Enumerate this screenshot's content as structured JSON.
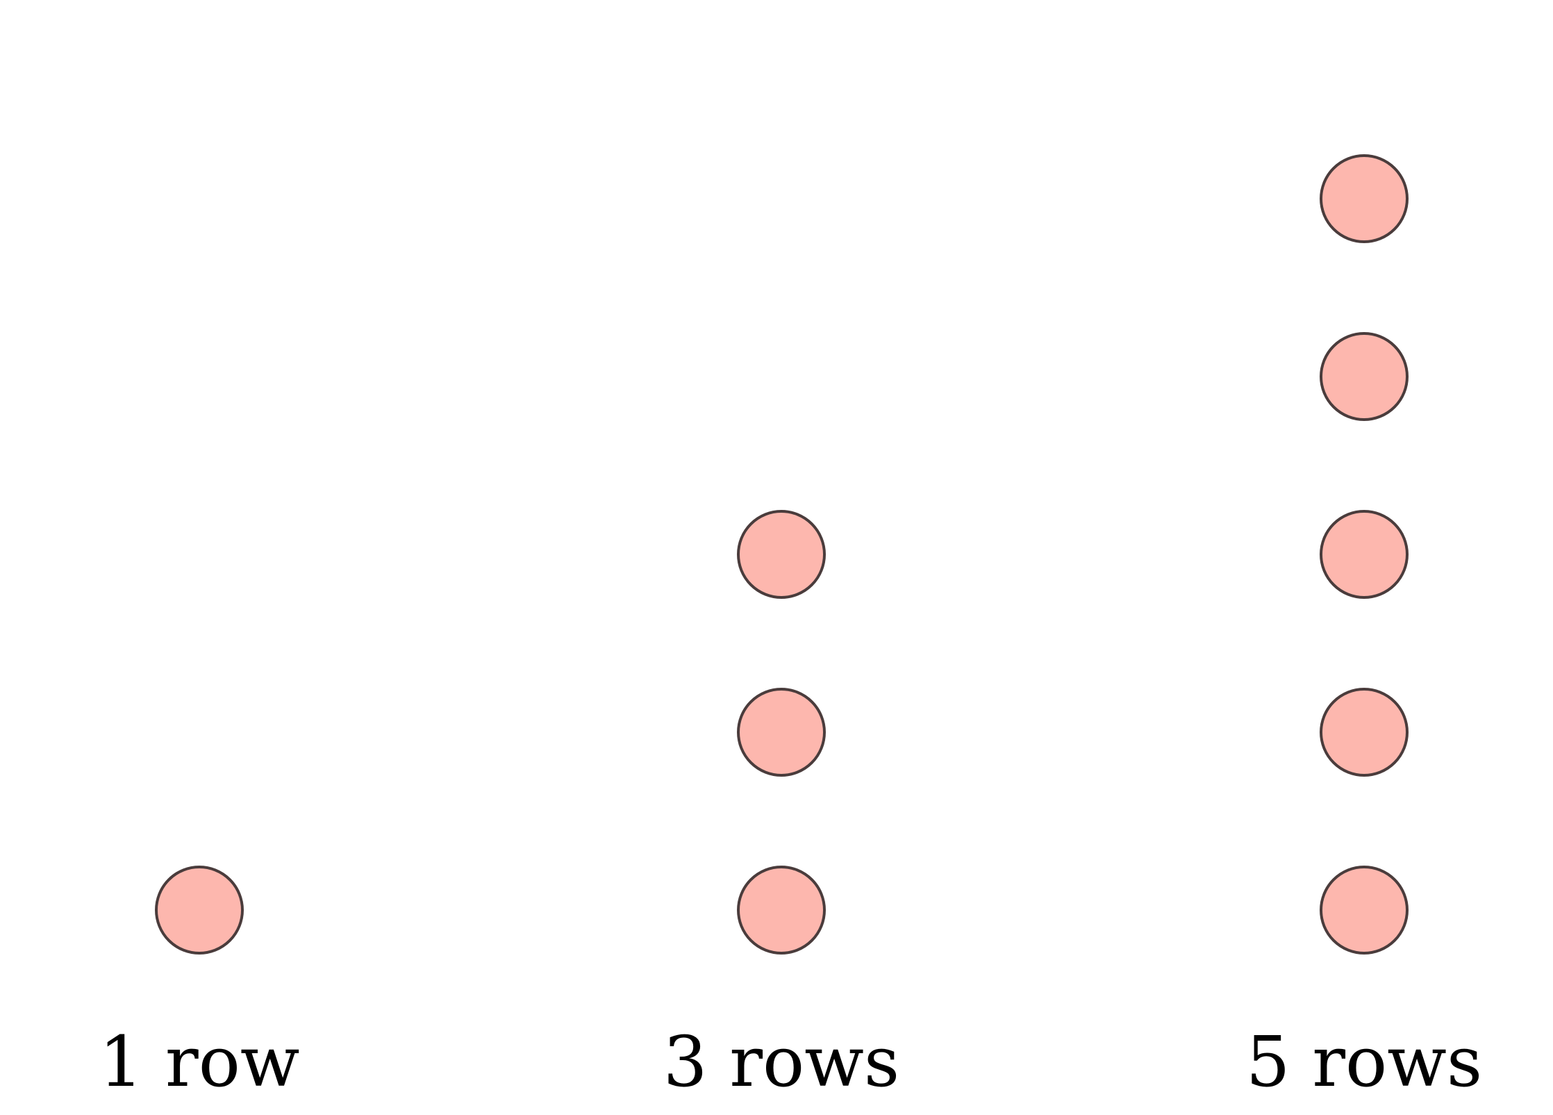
{
  "colors": {
    "dot_fill": "#fdb7ae",
    "dot_stroke": "#4a3c3c",
    "background": "#ffffff"
  },
  "columns": [
    {
      "label": "1 row",
      "rows": 1
    },
    {
      "label": "3 rows",
      "rows": 3
    },
    {
      "label": "5 rows",
      "rows": 5
    }
  ]
}
